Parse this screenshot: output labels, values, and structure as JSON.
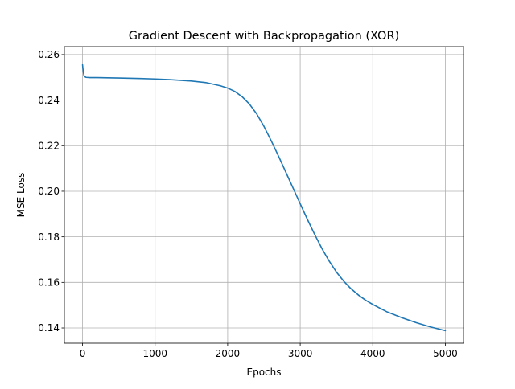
{
  "chart_data": {
    "type": "line",
    "title": "Gradient Descent with Backpropagation (XOR)",
    "xlabel": "Epochs",
    "ylabel": "MSE Loss",
    "xlim": [
      -250,
      5250
    ],
    "ylim": [
      0.1333,
      0.2635
    ],
    "grid": true,
    "line_color": "#1f77b4",
    "x_ticks": [
      0,
      1000,
      2000,
      3000,
      4000,
      5000
    ],
    "x_tick_labels": [
      "0",
      "1000",
      "2000",
      "3000",
      "4000",
      "5000"
    ],
    "y_ticks": [
      0.14,
      0.16,
      0.18,
      0.2,
      0.22,
      0.24,
      0.26
    ],
    "y_tick_labels": [
      "0.14",
      "0.16",
      "0.18",
      "0.20",
      "0.22",
      "0.24",
      "0.26"
    ],
    "series": [
      {
        "x": [
          0,
          10,
          20,
          30,
          50,
          100,
          200,
          500,
          800,
          1000,
          1200,
          1500,
          1700,
          1900,
          2000,
          2100,
          2200,
          2300,
          2400,
          2500,
          2600,
          2700,
          2800,
          2900,
          3000,
          3100,
          3200,
          3300,
          3400,
          3500,
          3600,
          3700,
          3800,
          3900,
          4000,
          4200,
          4400,
          4600,
          4800,
          5000
        ],
        "y": [
          0.2555,
          0.2525,
          0.2508,
          0.2503,
          0.25,
          0.2499,
          0.2499,
          0.2497,
          0.2495,
          0.2493,
          0.249,
          0.2484,
          0.2477,
          0.2463,
          0.2453,
          0.2438,
          0.2415,
          0.2383,
          0.234,
          0.2285,
          0.2222,
          0.2155,
          0.2085,
          0.2015,
          0.1945,
          0.1876,
          0.181,
          0.1748,
          0.1693,
          0.1645,
          0.1605,
          0.1572,
          0.1545,
          0.1522,
          0.1503,
          0.147,
          0.1445,
          0.1423,
          0.1404,
          0.1388
        ]
      }
    ]
  }
}
